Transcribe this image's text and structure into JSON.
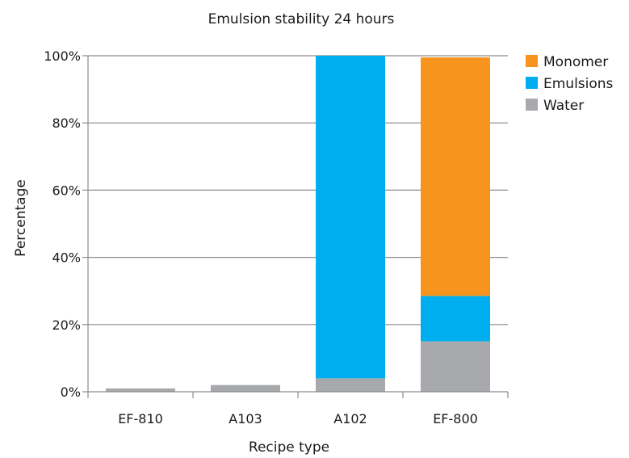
{
  "chart_data": {
    "type": "bar",
    "stacked": true,
    "title": "Emulsion stability 24 hours",
    "xlabel": "Recipe type",
    "ylabel": "Percentage",
    "ylim": [
      0,
      100
    ],
    "yticks": [
      0,
      20,
      40,
      60,
      80,
      100
    ],
    "ytick_labels": [
      "0%",
      "20%",
      "40%",
      "60%",
      "80%",
      "100%"
    ],
    "categories": [
      "EF-810",
      "A103",
      "A102",
      "EF-800"
    ],
    "grid": true,
    "legend_position": "top-right",
    "series": [
      {
        "name": "Water",
        "color": "#a7a9ac",
        "values": [
          1,
          2,
          4,
          15
        ]
      },
      {
        "name": "Emulsions",
        "color": "#00aeef",
        "values": [
          0,
          0,
          96,
          13.5
        ]
      },
      {
        "name": "Monomer",
        "color": "#f7941d",
        "values": [
          0,
          0,
          0,
          71
        ]
      }
    ],
    "legend_order": [
      "Monomer",
      "Emulsions",
      "Water"
    ]
  }
}
